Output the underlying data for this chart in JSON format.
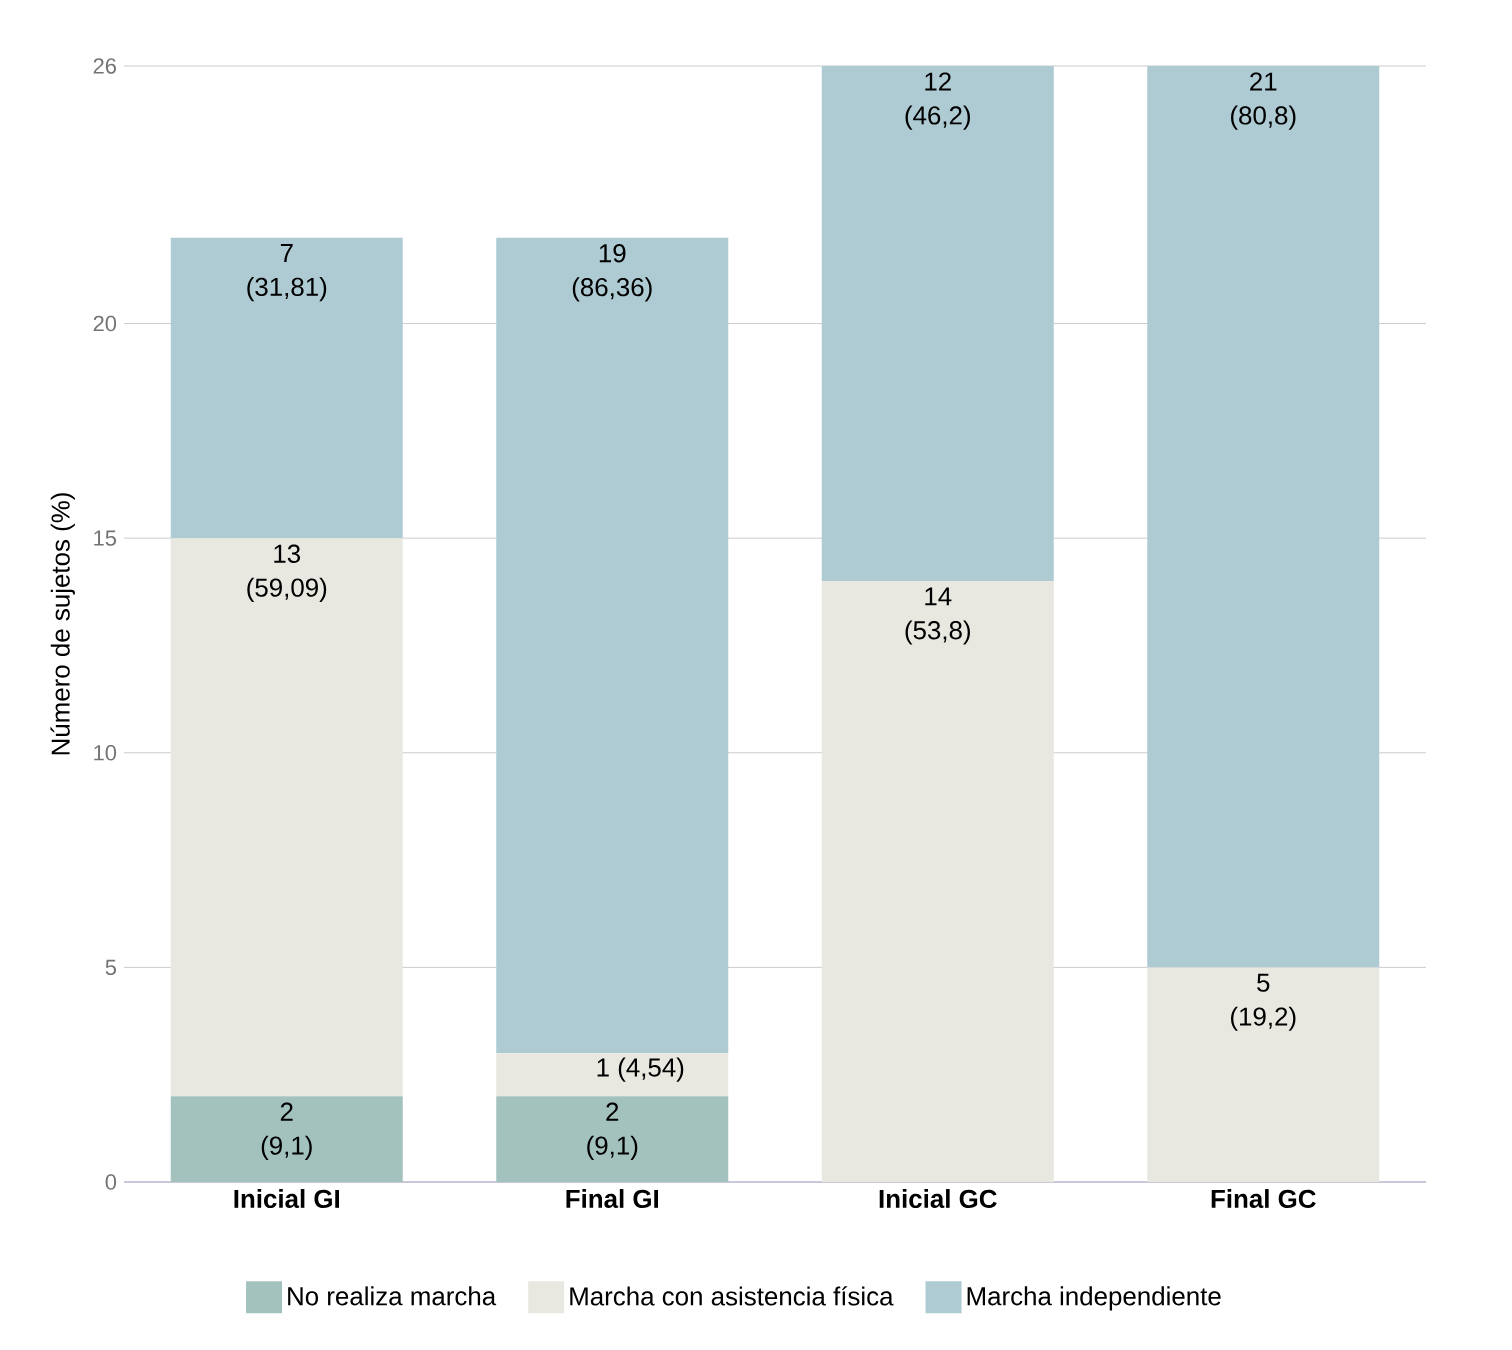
{
  "chart_data": {
    "type": "bar",
    "stacked": true,
    "ylabel": "Número de sujetos  (%)",
    "categories": [
      "Inicial GI",
      "Final GI",
      "Inicial GC",
      "Final GC"
    ],
    "series": [
      {
        "name": "No realiza marcha",
        "color": "#a3c2be",
        "values": [
          2,
          2,
          0,
          0
        ],
        "value_labels": [
          "2 (9,1)",
          "2 (9,1)",
          null,
          null
        ]
      },
      {
        "name": "Marcha con asistencia física",
        "color": "#e8e8e1",
        "values": [
          13,
          1,
          14,
          5
        ],
        "value_labels": [
          "13 (59,09)",
          "1 (4,54)",
          "14 (53,8)",
          "5 (19,2)"
        ]
      },
      {
        "name": "Marcha independiente",
        "color": "#aecbd4",
        "values": [
          7,
          19,
          12,
          21
        ],
        "value_labels": [
          "7 (31,81)",
          "19 (86,36)",
          "12 (46,2)",
          "21 (80,8)"
        ]
      }
    ],
    "ylim": [
      0,
      26
    ],
    "yticks": [
      0,
      5,
      10,
      15,
      20,
      26
    ],
    "grid": "y",
    "legend": "bottom"
  }
}
